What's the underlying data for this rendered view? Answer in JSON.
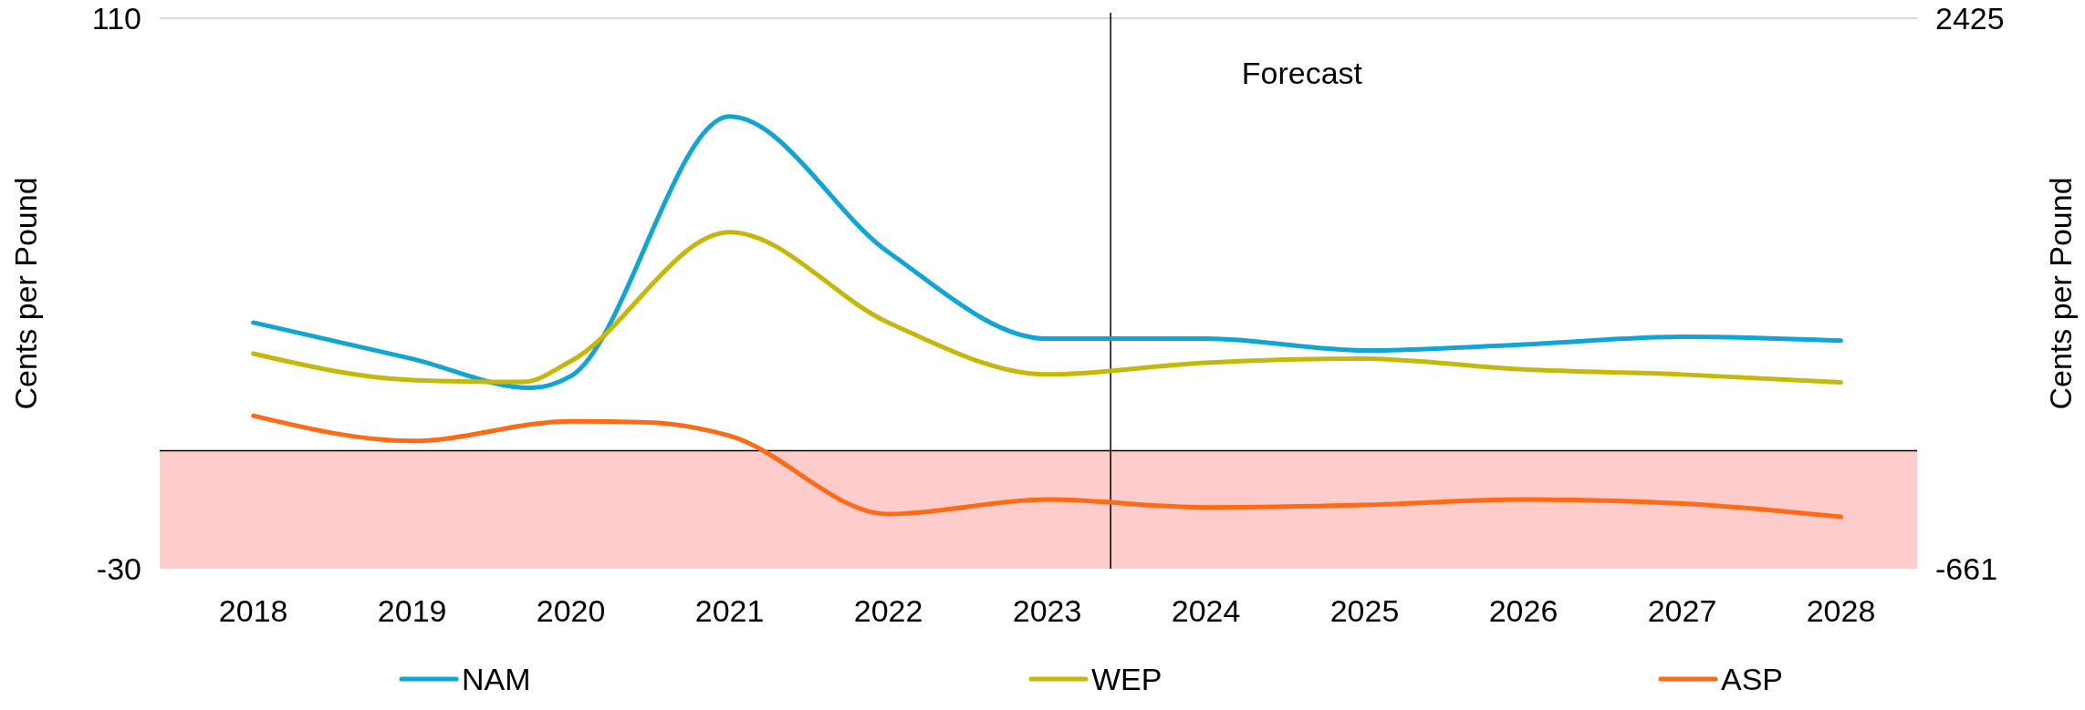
{
  "chart_data": {
    "type": "line",
    "ylabel": "Cents per Pound",
    "y2label": "Cents per Pound",
    "xlim": [
      2017.41,
      2028.48
    ],
    "xticks": [
      2018,
      2019,
      2020,
      2021,
      2022,
      2023,
      2024,
      2025,
      2026,
      2027,
      2028
    ],
    "ylim": [
      -30,
      110
    ],
    "yticks": [
      -30,
      110
    ],
    "y2lim": [
      -661,
      2425
    ],
    "y2ticks": [
      -661,
      2425
    ],
    "legend": "bottom",
    "line_style": "solid",
    "marker": "none",
    "series": [
      {
        "name": "NAM",
        "color": "#11a5d6",
        "x": [
          2018,
          2019,
          2019.75,
          2020,
          2021,
          2022,
          2023,
          2024,
          2025,
          2026,
          2027,
          2028
        ],
        "values": [
          32.6,
          23.4,
          16,
          19,
          85,
          50.5,
          28.5,
          28.5,
          25.5,
          27,
          29,
          28
        ]
      },
      {
        "name": "WEP",
        "color": "#c4b80a",
        "x": [
          2018,
          2019,
          2019.7,
          2020,
          2021,
          2022,
          2023,
          2024,
          2025,
          2026,
          2027,
          2028
        ],
        "values": [
          24.7,
          18,
          17.5,
          22.8,
          55.6,
          32.6,
          19.4,
          22.4,
          23.4,
          20.7,
          19.4,
          17.4
        ]
      },
      {
        "name": "ASP",
        "color": "#ff6a14",
        "x": [
          2018,
          2019,
          2020,
          2020.5,
          2021,
          2022,
          2023,
          2024,
          2025,
          2026,
          2027,
          2028
        ],
        "values": [
          8.9,
          2.5,
          7.5,
          7.2,
          3.8,
          -16.1,
          -12.4,
          -14.4,
          -13.8,
          -12.4,
          -13.4,
          -16.8
        ]
      }
    ],
    "ref_lines": [
      {
        "axis": "x",
        "value": 2023.4,
        "color": "#000000"
      },
      {
        "axis": "y",
        "value": 0,
        "color": "#000000"
      }
    ],
    "bands": [
      {
        "axis": "y",
        "from": -30,
        "to": 0,
        "color": "#ffcccc"
      }
    ],
    "annotations": [
      "Forecast"
    ]
  }
}
